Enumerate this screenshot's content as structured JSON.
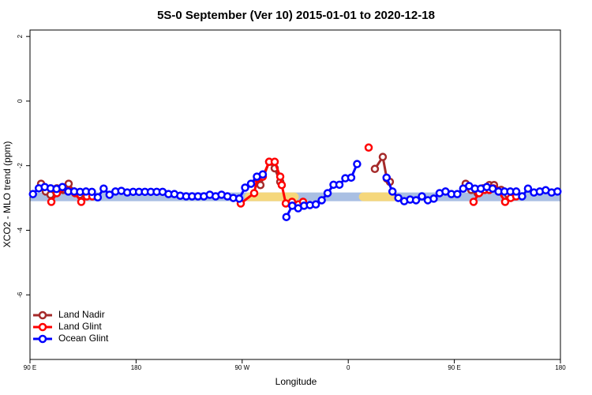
{
  "chart_data": {
    "type": "line",
    "title": "5S-0 September (Ver 10)   2015-01-01 to 2020-12-18",
    "x_label": "Longitude",
    "y_label": "XCO2 - MLO trend (ppm)",
    "xlim": [
      90,
      540
    ],
    "ylim": [
      -8,
      2.2
    ],
    "xticks": [
      {
        "value": 90,
        "label": "90 E"
      },
      {
        "value": 180,
        "label": "180"
      },
      {
        "value": 270,
        "label": "90 W"
      },
      {
        "value": 360,
        "label": "0"
      },
      {
        "value": 450,
        "label": "90 E"
      },
      {
        "value": 540,
        "label": "180"
      }
    ],
    "yticks": [
      2,
      0,
      -2,
      -4,
      -6
    ],
    "legend": "bottomleft",
    "band": {
      "range": [
        -3.1,
        -2.83
      ],
      "color": "#a9bfe3",
      "land_color": "#f5d77b",
      "land_spans": [
        [
          272,
          318
        ],
        [
          369,
          403
        ]
      ]
    },
    "series": [
      {
        "name": "Land Nadir",
        "color": "#a52a2a",
        "x": [
          99.4,
          103.4,
          107.4,
          112.8,
          118.1,
          122.8,
          127.5,
          132.2,
          138.2,
          210,
          285.5,
          292.9,
          297.6,
          302.3,
          340,
          382.6,
          389.3,
          392.7,
          395.3,
          430,
          459.6,
          464.3,
          469.7,
          474.3,
          479.7,
          483.7,
          489.7,
          495.8,
          501.1
        ],
        "values": [
          -2.56,
          -2.8,
          -2.9,
          -2.7,
          -2.75,
          -2.56,
          -2.8,
          -2.9,
          -2.9,
          null,
          -2.6,
          -1.88,
          -2.08,
          -2.5,
          null,
          -2.1,
          -1.73,
          -2.4,
          -2.5,
          null,
          -2.56,
          -2.75,
          -2.85,
          -2.7,
          -2.6,
          -2.6,
          -2.75,
          -2.9,
          -2.95
        ]
      },
      {
        "name": "Land Glint",
        "color": "#ff0000",
        "x": [
          108.1,
          112.8,
          116.8,
          122.8,
          128.2,
          133.5,
          138.2,
          142.9,
          200,
          268.8,
          280.2,
          282.8,
          287.5,
          292.9,
          297.6,
          302.3,
          303.6,
          307.0,
          312.3,
          317.7,
          321.7,
          350,
          377.3,
          420,
          466.3,
          471.0,
          475.7,
          479.7,
          483.1,
          487.7,
          493.1,
          497.8,
          502.5
        ],
        "values": [
          -3.12,
          -2.85,
          -2.7,
          -2.78,
          -2.85,
          -3.12,
          -2.95,
          -2.95,
          null,
          -3.17,
          -2.85,
          -2.4,
          -2.34,
          -1.88,
          -1.88,
          -2.34,
          -2.6,
          -3.17,
          -3.12,
          -3.2,
          -3.12,
          null,
          -1.44,
          null,
          -3.12,
          -2.85,
          -2.75,
          -2.75,
          -2.7,
          -2.8,
          -3.12,
          -3.0,
          -2.95
        ]
      },
      {
        "name": "Ocean Glint",
        "color": "#0000ff",
        "x": [
          92.5,
          97.5,
          102.5,
          107.5,
          112.5,
          117.5,
          122.5,
          127.5,
          132.5,
          137.5,
          142.5,
          147.5,
          152.5,
          157.5,
          162.5,
          167.5,
          172.5,
          177.5,
          182.5,
          187.5,
          192.5,
          197.5,
          202.5,
          207.5,
          212.5,
          217.5,
          222.5,
          227.5,
          232.5,
          237.5,
          242.5,
          247.5,
          252.5,
          257.5,
          262.5,
          267.5,
          272.5,
          277.5,
          282.5,
          287.5,
          292.5,
          297.5,
          302.5,
          307.5,
          312.5,
          317.5,
          322.5,
          327.5,
          332.5,
          337.5,
          342.5,
          347.5,
          352.5,
          357.5,
          362.5,
          367.5,
          372.5,
          377.5,
          382.5,
          387.5,
          392.5,
          397.5,
          402.5,
          407.5,
          412.5,
          417.5,
          422.5,
          427.5,
          432.5,
          437.5,
          442.5,
          447.5,
          452.5,
          457.5,
          462.5,
          467.5,
          472.5,
          477.5,
          482.5,
          487.5,
          492.5,
          497.5,
          502.5,
          507.5,
          512.5,
          517.5,
          522.5,
          527.5,
          532.5,
          537.5
        ],
        "values": [
          -2.88,
          -2.7,
          -2.66,
          -2.7,
          -2.72,
          -2.66,
          -2.8,
          -2.8,
          -2.81,
          -2.8,
          -2.81,
          -2.98,
          -2.71,
          -2.9,
          -2.8,
          -2.78,
          -2.83,
          -2.81,
          -2.81,
          -2.81,
          -2.81,
          -2.81,
          -2.81,
          -2.88,
          -2.88,
          -2.93,
          -2.95,
          -2.95,
          -2.95,
          -2.95,
          -2.9,
          -2.95,
          -2.9,
          -2.95,
          -3.0,
          -3.02,
          -2.68,
          -2.56,
          -2.34,
          -2.27,
          null,
          null,
          null,
          -3.59,
          -3.24,
          -3.32,
          -3.24,
          -3.22,
          -3.2,
          -3.07,
          -2.85,
          -2.59,
          -2.59,
          -2.39,
          -2.37,
          -1.95,
          null,
          null,
          null,
          null,
          -2.37,
          -2.8,
          -3.0,
          -3.1,
          -3.05,
          -3.07,
          -2.95,
          -3.07,
          -3.02,
          -2.85,
          -2.8,
          -2.88,
          -2.88,
          -2.71,
          -2.63,
          -2.71,
          -2.71,
          -2.66,
          -2.71,
          -2.8,
          -2.8,
          -2.8,
          -2.8,
          -2.95,
          -2.71,
          -2.83,
          -2.8,
          -2.76,
          -2.83,
          -2.8
        ]
      }
    ]
  }
}
